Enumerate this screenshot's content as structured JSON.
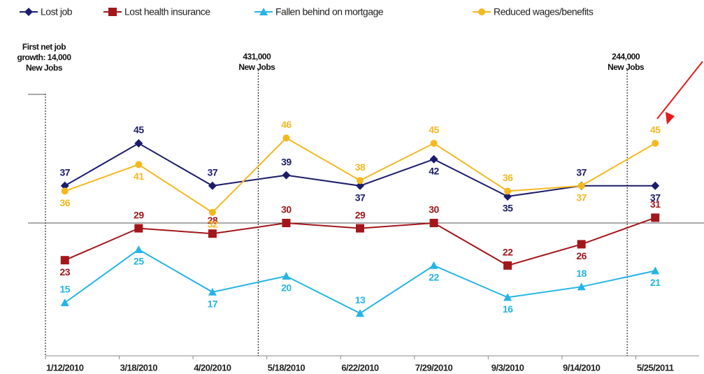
{
  "chart_data": {
    "type": "line",
    "categories": [
      "1/12/2010",
      "3/18/2010",
      "4/20/2010",
      "5/18/2010",
      "6/22/2010",
      "7/29/2010",
      "9/3/2010",
      "9/14/2010",
      "5/25/2011"
    ],
    "series": [
      {
        "name": "Lost job",
        "color": "#1c1c6b",
        "marker": "diamond",
        "values": [
          37,
          45,
          37,
          39,
          37,
          42,
          35,
          37,
          37
        ]
      },
      {
        "name": "Lost health insurance",
        "color": "#a3171b",
        "marker": "square",
        "values": [
          23,
          29,
          28,
          30,
          29,
          30,
          22,
          26,
          31
        ]
      },
      {
        "name": "Fallen behind on mortgage",
        "color": "#25b4e6",
        "marker": "triangle",
        "values": [
          15,
          25,
          17,
          20,
          13,
          22,
          16,
          18,
          21
        ]
      },
      {
        "name": "Reduced wages/benefits",
        "color": "#f4b820",
        "marker": "circle",
        "values": [
          36,
          41,
          32,
          46,
          38,
          45,
          36,
          37,
          45
        ]
      }
    ],
    "ylim": [
      5,
      55
    ],
    "reference_lines": [
      30
    ],
    "annotations": [
      {
        "category": 0,
        "lines": [
          "First net job",
          "growth: 14,000",
          "New Jobs"
        ]
      },
      {
        "category": 3,
        "lines": [
          "431,000",
          "New Jobs"
        ]
      },
      {
        "category": 8,
        "lines": [
          "244,000",
          "New Jobs"
        ]
      }
    ]
  }
}
